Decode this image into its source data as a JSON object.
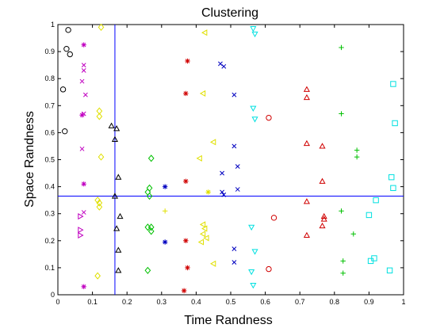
{
  "chart_data": {
    "type": "scatter",
    "title": "Clustering",
    "xlabel": "Time Randness",
    "ylabel": "Space Randness",
    "xlim": [
      0,
      1
    ],
    "ylim": [
      0,
      1
    ],
    "xticks": [
      "0",
      "0.1",
      "0.2",
      "0.3",
      "0.4",
      "0.5",
      "0.6",
      "0.7",
      "0.8",
      "0.9",
      "1"
    ],
    "yticks": [
      "0",
      "0.1",
      "0.2",
      "0.3",
      "0.4",
      "0.5",
      "0.6",
      "0.7",
      "0.8",
      "0.9",
      "1"
    ],
    "grid": false,
    "reference_lines": {
      "vertical_x": 0.165,
      "horizontal_y": 0.365,
      "color": "#0000ff"
    },
    "series": [
      {
        "marker": "circle",
        "color": "#000000",
        "points": [
          [
            0.03,
            0.98
          ],
          [
            0.025,
            0.91
          ],
          [
            0.035,
            0.89
          ],
          [
            0.015,
            0.76
          ],
          [
            0.02,
            0.605
          ]
        ]
      },
      {
        "marker": "triangle-up",
        "color": "#000000",
        "points": [
          [
            0.155,
            0.625
          ],
          [
            0.17,
            0.615
          ],
          [
            0.165,
            0.575
          ],
          [
            0.175,
            0.435
          ],
          [
            0.165,
            0.365
          ],
          [
            0.18,
            0.29
          ],
          [
            0.17,
            0.245
          ],
          [
            0.175,
            0.165
          ],
          [
            0.175,
            0.09
          ]
        ]
      },
      {
        "marker": "cross",
        "color": "#c000c0",
        "points": [
          [
            0.075,
            0.85
          ],
          [
            0.075,
            0.83
          ],
          [
            0.07,
            0.79
          ],
          [
            0.08,
            0.74
          ],
          [
            0.075,
            0.67
          ],
          [
            0.07,
            0.54
          ],
          [
            0.075,
            0.305
          ]
        ]
      },
      {
        "marker": "asterisk",
        "color": "#c000c0",
        "points": [
          [
            0.075,
            0.925
          ],
          [
            0.07,
            0.665
          ],
          [
            0.075,
            0.41
          ],
          [
            0.075,
            0.03
          ]
        ]
      },
      {
        "marker": "triangle-right",
        "color": "#c000c0",
        "points": [
          [
            0.065,
            0.29
          ],
          [
            0.065,
            0.24
          ],
          [
            0.065,
            0.22
          ]
        ]
      },
      {
        "marker": "diamond",
        "color": "#e0e000",
        "points": [
          [
            0.125,
            0.99
          ],
          [
            0.12,
            0.68
          ],
          [
            0.12,
            0.66
          ],
          [
            0.125,
            0.51
          ],
          [
            0.115,
            0.35
          ],
          [
            0.12,
            0.34
          ],
          [
            0.12,
            0.325
          ],
          [
            0.115,
            0.07
          ]
        ]
      },
      {
        "marker": "diamond",
        "color": "#00c000",
        "points": [
          [
            0.27,
            0.505
          ],
          [
            0.265,
            0.395
          ],
          [
            0.26,
            0.38
          ],
          [
            0.265,
            0.365
          ],
          [
            0.26,
            0.25
          ],
          [
            0.27,
            0.25
          ],
          [
            0.27,
            0.235
          ],
          [
            0.26,
            0.09
          ]
        ]
      },
      {
        "marker": "asterisk",
        "color": "#0000c0",
        "points": [
          [
            0.31,
            0.4
          ],
          [
            0.31,
            0.195
          ]
        ]
      },
      {
        "marker": "plus",
        "color": "#e0e000",
        "points": [
          [
            0.31,
            0.31
          ]
        ]
      },
      {
        "marker": "triangle-left",
        "color": "#e0e000",
        "points": [
          [
            0.425,
            0.97
          ],
          [
            0.42,
            0.745
          ],
          [
            0.41,
            0.505
          ],
          [
            0.42,
            0.26
          ],
          [
            0.425,
            0.245
          ],
          [
            0.42,
            0.225
          ],
          [
            0.43,
            0.21
          ],
          [
            0.415,
            0.195
          ],
          [
            0.45,
            0.565
          ],
          [
            0.45,
            0.115
          ]
        ]
      },
      {
        "marker": "asterisk",
        "color": "#e0e000",
        "points": [
          [
            0.435,
            0.38
          ]
        ]
      },
      {
        "marker": "asterisk",
        "color": "#d00000",
        "points": [
          [
            0.375,
            0.865
          ],
          [
            0.37,
            0.745
          ],
          [
            0.37,
            0.42
          ],
          [
            0.37,
            0.2
          ],
          [
            0.375,
            0.1
          ],
          [
            0.365,
            0.015
          ]
        ]
      },
      {
        "marker": "cross",
        "color": "#0000c0",
        "points": [
          [
            0.47,
            0.855
          ],
          [
            0.48,
            0.845
          ],
          [
            0.51,
            0.74
          ],
          [
            0.51,
            0.55
          ],
          [
            0.52,
            0.475
          ],
          [
            0.475,
            0.45
          ],
          [
            0.475,
            0.38
          ],
          [
            0.48,
            0.37
          ],
          [
            0.52,
            0.39
          ],
          [
            0.51,
            0.17
          ],
          [
            0.51,
            0.12
          ]
        ]
      },
      {
        "marker": "triangle-down",
        "color": "#00e0e0",
        "points": [
          [
            0.565,
            0.985
          ],
          [
            0.57,
            0.965
          ],
          [
            0.565,
            0.69
          ],
          [
            0.57,
            0.65
          ],
          [
            0.56,
            0.25
          ],
          [
            0.57,
            0.16
          ],
          [
            0.56,
            0.085
          ],
          [
            0.565,
            0.035
          ]
        ]
      },
      {
        "marker": "circle",
        "color": "#d00000",
        "points": [
          [
            0.61,
            0.655
          ],
          [
            0.625,
            0.285
          ],
          [
            0.61,
            0.095
          ]
        ]
      },
      {
        "marker": "triangle-up",
        "color": "#d00000",
        "points": [
          [
            0.72,
            0.76
          ],
          [
            0.72,
            0.73
          ],
          [
            0.72,
            0.56
          ],
          [
            0.765,
            0.55
          ],
          [
            0.765,
            0.42
          ],
          [
            0.72,
            0.345
          ],
          [
            0.77,
            0.29
          ],
          [
            0.77,
            0.28
          ],
          [
            0.765,
            0.255
          ],
          [
            0.72,
            0.22
          ]
        ]
      },
      {
        "marker": "plus",
        "color": "#00c000",
        "points": [
          [
            0.82,
            0.915
          ],
          [
            0.82,
            0.67
          ],
          [
            0.865,
            0.535
          ],
          [
            0.865,
            0.51
          ],
          [
            0.82,
            0.31
          ],
          [
            0.855,
            0.225
          ],
          [
            0.825,
            0.125
          ],
          [
            0.825,
            0.08
          ]
        ]
      },
      {
        "marker": "square",
        "color": "#00e0e0",
        "points": [
          [
            0.97,
            0.78
          ],
          [
            0.975,
            0.635
          ],
          [
            0.965,
            0.435
          ],
          [
            0.97,
            0.395
          ],
          [
            0.92,
            0.35
          ],
          [
            0.9,
            0.295
          ],
          [
            0.905,
            0.125
          ],
          [
            0.915,
            0.135
          ],
          [
            0.96,
            0.09
          ]
        ]
      }
    ]
  }
}
